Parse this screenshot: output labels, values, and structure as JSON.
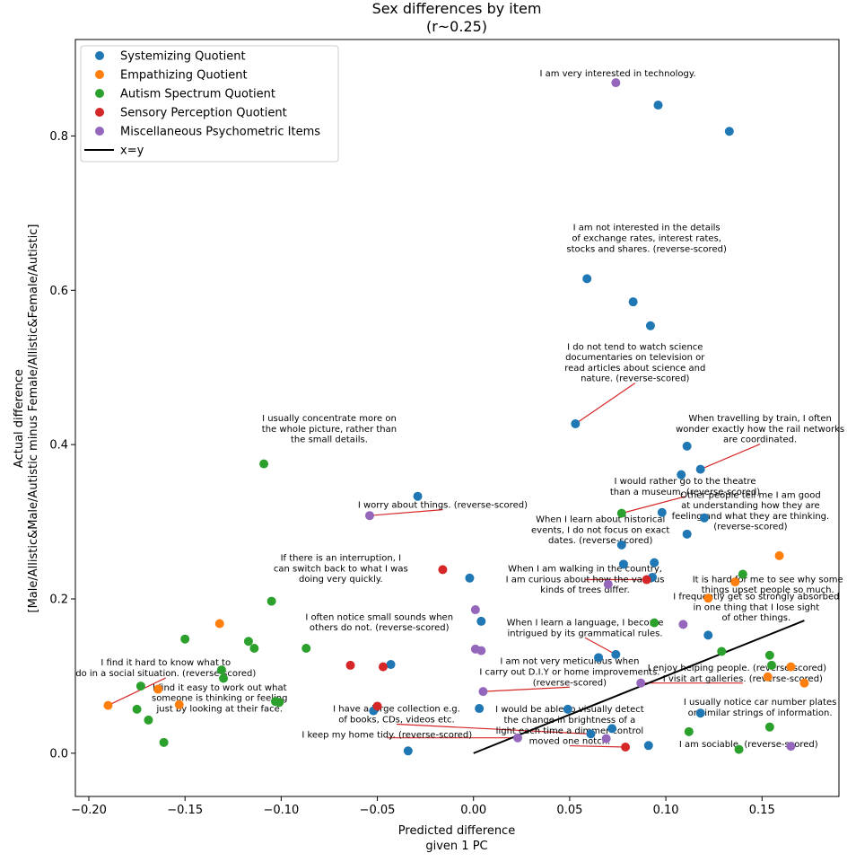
{
  "chart_data": {
    "type": "scatter",
    "title": "Sex differences by item",
    "subtitle": "(r~0.25)",
    "xlabel_lines": [
      "Predicted difference",
      "given 1 PC"
    ],
    "ylabel_lines": [
      "Actual difference",
      "[Male/Allistic&Male/Autistic minus Female/Allistic&Female/Autistic]"
    ],
    "xlim": [
      -0.207,
      0.19
    ],
    "ylim": [
      -0.056,
      0.925
    ],
    "xticks": [
      -0.2,
      -0.15,
      -0.1,
      -0.05,
      0.0,
      0.05,
      0.1,
      0.15
    ],
    "xtick_labels": [
      "−0.20",
      "−0.15",
      "−0.10",
      "−0.05",
      "0.00",
      "0.05",
      "0.10",
      "0.15"
    ],
    "yticks": [
      0.0,
      0.2,
      0.4,
      0.6,
      0.8
    ],
    "ytick_labels": [
      "0.0",
      "0.2",
      "0.4",
      "0.6",
      "0.8"
    ],
    "grid": false,
    "legend_position": "top-left",
    "reference_line": {
      "label": "x=y",
      "from": [
        0.0,
        0.0
      ],
      "to": [
        0.172,
        0.172
      ],
      "color": "#000000"
    },
    "annotation_color": "#d62728",
    "series": [
      {
        "name": "Systemizing Quotient",
        "color": "#1f77b4",
        "points": [
          [
            0.096,
            0.84
          ],
          [
            0.133,
            0.806
          ],
          [
            0.059,
            0.615
          ],
          [
            0.083,
            0.585
          ],
          [
            0.092,
            0.554
          ],
          [
            0.053,
            0.427
          ],
          [
            0.111,
            0.398
          ],
          [
            0.118,
            0.368
          ],
          [
            0.108,
            0.361
          ],
          [
            -0.029,
            0.333
          ],
          [
            0.098,
            0.312
          ],
          [
            0.12,
            0.305
          ],
          [
            0.111,
            0.284
          ],
          [
            0.077,
            0.27
          ],
          [
            0.094,
            0.247
          ],
          [
            0.078,
            0.245
          ],
          [
            0.093,
            0.228
          ],
          [
            -0.002,
            0.227
          ],
          [
            0.004,
            0.171
          ],
          [
            0.065,
            0.124
          ],
          [
            0.074,
            0.128
          ],
          [
            0.122,
            0.153
          ],
          [
            -0.043,
            0.115
          ],
          [
            0.049,
            0.057
          ],
          [
            0.003,
            0.058
          ],
          [
            -0.052,
            0.055
          ],
          [
            0.118,
            0.052
          ],
          [
            0.072,
            0.032
          ],
          [
            0.061,
            0.025
          ],
          [
            0.091,
            0.01
          ],
          [
            -0.034,
            0.003
          ]
        ]
      },
      {
        "name": "Empathizing Quotient",
        "color": "#ff7f0e",
        "points": [
          [
            0.159,
            0.256
          ],
          [
            0.136,
            0.222
          ],
          [
            0.122,
            0.201
          ],
          [
            -0.132,
            0.168
          ],
          [
            0.165,
            0.112
          ],
          [
            0.153,
            0.099
          ],
          [
            0.172,
            0.091
          ],
          [
            -0.164,
            0.083
          ],
          [
            -0.153,
            0.063
          ],
          [
            -0.19,
            0.062
          ]
        ]
      },
      {
        "name": "Autism Spectrum Quotient",
        "color": "#2ca02c",
        "points": [
          [
            -0.109,
            0.375
          ],
          [
            0.077,
            0.311
          ],
          [
            0.14,
            0.232
          ],
          [
            -0.105,
            0.197
          ],
          [
            0.094,
            0.169
          ],
          [
            -0.15,
            0.148
          ],
          [
            -0.117,
            0.145
          ],
          [
            -0.114,
            0.136
          ],
          [
            -0.087,
            0.136
          ],
          [
            0.129,
            0.132
          ],
          [
            0.154,
            0.127
          ],
          [
            0.155,
            0.114
          ],
          [
            -0.131,
            0.108
          ],
          [
            -0.13,
            0.097
          ],
          [
            -0.173,
            0.087
          ],
          [
            -0.103,
            0.067
          ],
          [
            -0.101,
            0.066
          ],
          [
            -0.175,
            0.057
          ],
          [
            -0.169,
            0.043
          ],
          [
            0.154,
            0.034
          ],
          [
            0.112,
            0.028
          ],
          [
            -0.161,
            0.014
          ],
          [
            0.138,
            0.005
          ]
        ]
      },
      {
        "name": "Sensory Perception Quotient",
        "color": "#d62728",
        "points": [
          [
            -0.016,
            0.238
          ],
          [
            0.09,
            0.225
          ],
          [
            -0.064,
            0.114
          ],
          [
            -0.047,
            0.112
          ],
          [
            -0.05,
            0.061
          ],
          [
            0.079,
            0.008
          ]
        ]
      },
      {
        "name": "Miscellaneous Psychometric Items",
        "color": "#9467bd",
        "points": [
          [
            0.074,
            0.869
          ],
          [
            -0.054,
            0.308
          ],
          [
            0.07,
            0.219
          ],
          [
            0.001,
            0.186
          ],
          [
            0.109,
            0.167
          ],
          [
            0.001,
            0.135
          ],
          [
            0.004,
            0.133
          ],
          [
            0.005,
            0.08
          ],
          [
            0.087,
            0.091
          ],
          [
            0.023,
            0.02
          ],
          [
            0.069,
            0.019
          ],
          [
            0.165,
            0.009
          ]
        ]
      }
    ],
    "annotations": [
      {
        "lines": [
          "I am very interested in technology."
        ],
        "point": [
          0.074,
          0.869
        ],
        "text_pos": [
          0.075,
          0.877
        ],
        "arrow": false
      },
      {
        "lines": [
          "I am not interested in the details",
          "of exchange rates, interest rates,",
          "stocks and shares. (reverse-scored)"
        ],
        "point": [
          0.059,
          0.615
        ],
        "text_pos": [
          0.09,
          0.65
        ],
        "arrow": false
      },
      {
        "lines": [
          "I do not tend to watch science",
          "documentaries on television or",
          "read articles about science and",
          "nature. (reverse-scored)"
        ],
        "point": [
          0.053,
          0.427
        ],
        "text_pos": [
          0.084,
          0.482
        ],
        "arrow": true
      },
      {
        "lines": [
          "When travelling by train, I often",
          "wonder exactly how the rail networks",
          "are coordinated."
        ],
        "point": [
          0.118,
          0.368
        ],
        "text_pos": [
          0.149,
          0.403
        ],
        "arrow": true
      },
      {
        "lines": [
          "I usually concentrate more on",
          "the whole picture, rather than",
          "the small details."
        ],
        "point": [
          -0.109,
          0.375
        ],
        "text_pos": [
          -0.075,
          0.403
        ],
        "arrow": false
      },
      {
        "lines": [
          "I worry about things. (reverse-scored)"
        ],
        "point": [
          -0.054,
          0.308
        ],
        "text_pos": [
          -0.016,
          0.318
        ],
        "arrow": true
      },
      {
        "lines": [
          "I would rather go to the theatre",
          "than a museum. (reverse-scored)"
        ],
        "point": [
          0.077,
          0.311
        ],
        "text_pos": [
          0.11,
          0.335
        ],
        "arrow": true
      },
      {
        "lines": [
          "Other people tell me I am good",
          "at understanding how they are",
          "feeling and what they are thinking.",
          "(reverse-scored)"
        ],
        "point": [
          0.136,
          0.222
        ],
        "text_pos": [
          0.144,
          0.29
        ],
        "arrow": false
      },
      {
        "lines": [
          "When I learn about historical",
          "events, I do not focus on exact",
          "dates. (reverse-scored)"
        ],
        "point": [
          0.078,
          0.245
        ],
        "text_pos": [
          0.066,
          0.272
        ],
        "arrow": false
      },
      {
        "lines": [
          "If there is an interruption, I",
          "can switch back to what I was",
          "doing very quickly."
        ],
        "point": [
          -0.105,
          0.197
        ],
        "text_pos": [
          -0.069,
          0.222
        ],
        "arrow": false
      },
      {
        "lines": [
          "When I am walking in the country,",
          "I am curious about how the various",
          "kinds of trees differ."
        ],
        "point": [
          0.09,
          0.225
        ],
        "text_pos": [
          0.058,
          0.208
        ],
        "arrow": true
      },
      {
        "lines": [
          "It is hard for me to see why some",
          "things upset people so much."
        ],
        "point": [
          0.122,
          0.201
        ],
        "text_pos": [
          0.153,
          0.208
        ],
        "arrow": false
      },
      {
        "lines": [
          "I often notice small sounds when",
          "others do not. (reverse-scored)"
        ],
        "point": [
          -0.047,
          0.112
        ],
        "text_pos": [
          -0.049,
          0.159
        ],
        "arrow": false
      },
      {
        "lines": [
          "I frequently get so strongly absorbed",
          "in one thing that I lose sight",
          "of other things."
        ],
        "point": [
          0.109,
          0.167
        ],
        "text_pos": [
          0.147,
          0.172
        ],
        "arrow": false
      },
      {
        "lines": [
          "When I learn a language, I become",
          "intrigued by its grammatical rules."
        ],
        "point": [
          0.074,
          0.128
        ],
        "text_pos": [
          0.058,
          0.152
        ],
        "arrow": true
      },
      {
        "lines": [
          "I enjoy helping people. (reverse-scored)"
        ],
        "point": [
          0.136,
          0.111
        ],
        "text_pos": [
          0.137,
          0.107
        ],
        "arrow": false
      },
      {
        "lines": [
          "I find it hard to know what to",
          "do in a social situation. (reverse-scored)"
        ],
        "point": [
          -0.19,
          0.062
        ],
        "text_pos": [
          -0.16,
          0.1
        ],
        "arrow": true
      },
      {
        "lines": [
          "I visit art galleries. (reverse-scored)"
        ],
        "point": [
          0.087,
          0.091
        ],
        "text_pos": [
          0.14,
          0.093
        ],
        "arrow": true
      },
      {
        "lines": [
          "I am not very meticulous when",
          "I carry out D.I.Y or home improvements.",
          "(reverse-scored)"
        ],
        "point": [
          0.005,
          0.08
        ],
        "text_pos": [
          0.05,
          0.088
        ],
        "arrow": true
      },
      {
        "lines": [
          "I find it easy to work out what",
          "someone is thinking or feeling",
          "just by looking at their face."
        ],
        "point": [
          -0.169,
          0.043
        ],
        "text_pos": [
          -0.132,
          0.054
        ],
        "arrow": false
      },
      {
        "lines": [
          "I usually notice car number plates",
          "or similar strings of information."
        ],
        "point": [
          0.154,
          0.034
        ],
        "text_pos": [
          0.149,
          0.049
        ],
        "arrow": false
      },
      {
        "lines": [
          "I have a large collection e.g.",
          "of books, CDs, videos etc."
        ],
        "point": [
          0.061,
          0.025
        ],
        "text_pos": [
          -0.04,
          0.04
        ],
        "arrow": true
      },
      {
        "lines": [
          "I keep my home tidy. (reverse-scored)"
        ],
        "point": [
          0.023,
          0.02
        ],
        "text_pos": [
          -0.045,
          0.02
        ],
        "arrow": true
      },
      {
        "lines": [
          "I would be able to visually detect",
          "the change in brightness of a",
          "light each time a dimmer control",
          "moved one notch."
        ],
        "point": [
          0.079,
          0.008
        ],
        "text_pos": [
          0.05,
          0.012
        ],
        "arrow": true
      },
      {
        "lines": [
          "I am sociable. (reverse-scored)"
        ],
        "point": [
          0.165,
          0.009
        ],
        "text_pos": [
          0.143,
          0.008
        ],
        "arrow": false
      }
    ]
  }
}
